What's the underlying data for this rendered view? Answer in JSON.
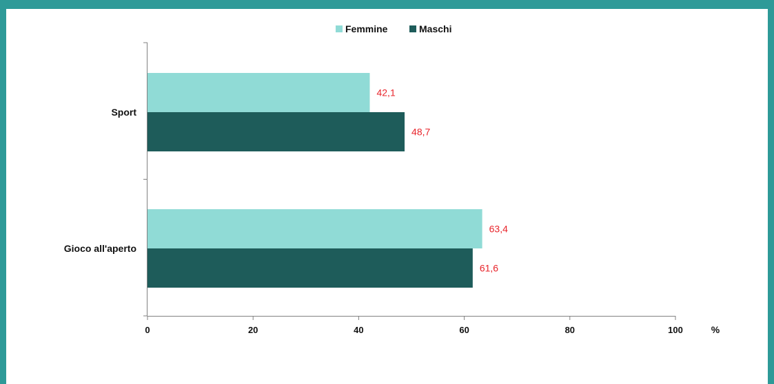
{
  "chart_data": {
    "type": "bar",
    "orientation": "horizontal",
    "title": "",
    "xlabel": "",
    "ylabel": "",
    "unit": "%",
    "categories": [
      "Sport",
      "Gioco all'aperto"
    ],
    "series": [
      {
        "name": "Femmine",
        "values": [
          42.1,
          63.4
        ],
        "labels": [
          "42,1",
          "63,4"
        ],
        "color": "#90dbd6"
      },
      {
        "name": "Maschi",
        "values": [
          48.7,
          61.6
        ],
        "labels": [
          "48,7",
          "61,6"
        ],
        "color": "#1e5c5a"
      }
    ],
    "xlim": [
      0,
      100
    ],
    "xticks": [
      0,
      20,
      40,
      60,
      80,
      100
    ],
    "grid": false,
    "legend": "top-center",
    "label_color": "#e8242b",
    "frame_color": "#2e9a98"
  }
}
